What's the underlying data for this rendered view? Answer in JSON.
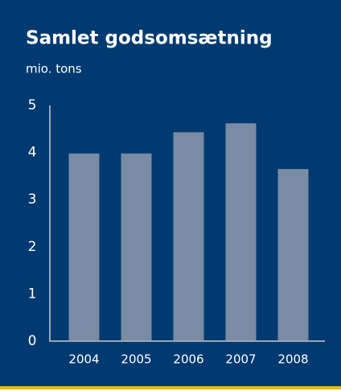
{
  "chart_data": {
    "type": "bar",
    "title": "Samlet godsomsætning",
    "subtitle": "mio. tons",
    "categories": [
      "2004",
      "2005",
      "2006",
      "2007",
      "2008"
    ],
    "values": [
      3.98,
      3.98,
      4.43,
      4.62,
      3.65
    ],
    "color": "#7a8ba4",
    "ylim": [
      0,
      5
    ],
    "yticks": [
      0,
      1,
      2,
      3,
      4,
      5
    ],
    "grid": false
  }
}
